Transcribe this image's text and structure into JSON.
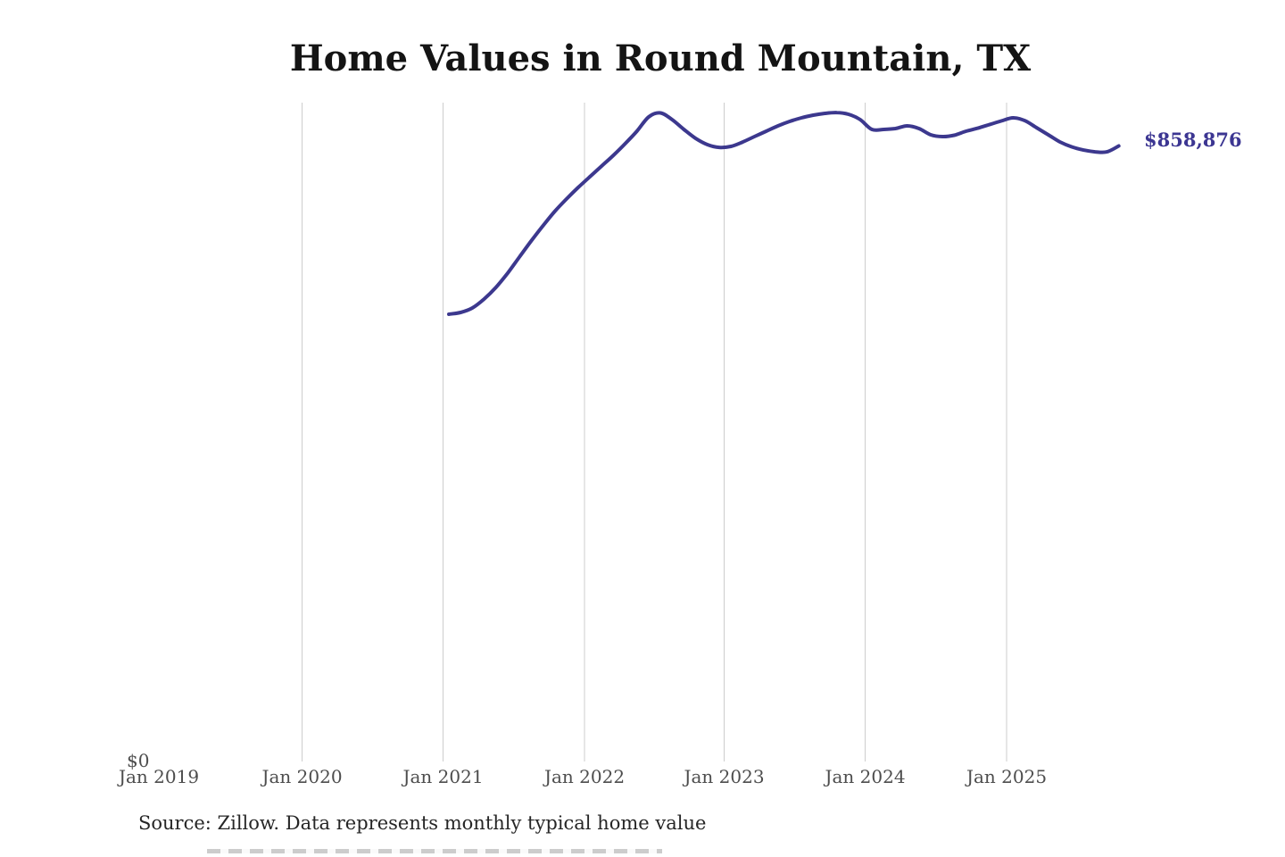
{
  "page": {
    "background": "#ffffff"
  },
  "chart_data": {
    "type": "line",
    "title": "Home Values in Round Mountain, TX",
    "source": "Source: Zillow. Data represents monthly typical home value",
    "legend": "none",
    "grid": "vertical gridlines at each January (2020-2025), no horizontal gridlines, y-axis starts at $0",
    "line_color": "#3c388e",
    "gridline_color": "#cdcdcd",
    "label_color": "#4d4d4d",
    "end_label": "$858,876",
    "last_value": 858876,
    "y_zero_label": "$0",
    "ylim_usd": [
      0,
      1080000
    ],
    "x_tick_labels": [
      "Jan 2019",
      "Jan 2020",
      "Jan 2021",
      "Jan 2022",
      "Jan 2023",
      "Jan 2024",
      "Jan 2025"
    ],
    "series": [
      {
        "name": "Monthly typical home value (USD, estimated from plot)",
        "x": [
          "2021-01",
          "2021-02",
          "2021-03",
          "2021-04",
          "2021-05",
          "2021-06",
          "2021-07",
          "2021-08",
          "2021-09",
          "2021-10",
          "2021-11",
          "2021-12",
          "2022-01",
          "2022-02",
          "2022-03",
          "2022-04",
          "2022-05",
          "2022-06",
          "2022-07",
          "2022-08",
          "2022-09",
          "2022-10",
          "2022-11",
          "2022-12",
          "2023-01",
          "2023-02",
          "2023-03",
          "2023-04",
          "2023-05",
          "2023-06",
          "2023-07",
          "2023-08",
          "2023-09",
          "2023-10",
          "2023-11",
          "2023-12",
          "2024-01",
          "2024-02",
          "2024-03",
          "2024-04",
          "2024-05",
          "2024-06",
          "2024-07",
          "2024-08",
          "2024-09",
          "2024-10",
          "2024-11",
          "2024-12",
          "2025-01",
          "2025-02",
          "2025-03",
          "2025-04",
          "2025-05",
          "2025-06",
          "2025-07",
          "2025-08",
          "2025-09",
          "2025-10"
        ],
        "values": [
          624100,
          626600,
          632800,
          645300,
          661500,
          681400,
          703800,
          726200,
          747400,
          767300,
          784800,
          800900,
          815900,
          830900,
          845800,
          862000,
          879400,
          899300,
          905000,
          895600,
          881900,
          869400,
          860700,
          856900,
          858200,
          864400,
          871900,
          879400,
          886900,
          893100,
          898100,
          901800,
          904300,
          905500,
          903100,
          895600,
          881900,
          881900,
          883200,
          886900,
          883200,
          874500,
          872000,
          873800,
          879400,
          883700,
          888700,
          893700,
          898100,
          894300,
          884400,
          874500,
          864500,
          857600,
          853200,
          850700,
          850700,
          858876
        ]
      }
    ]
  }
}
